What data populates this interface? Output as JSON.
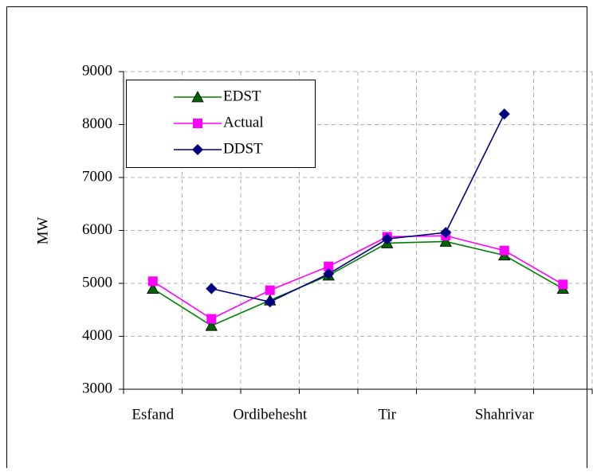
{
  "chart_data": {
    "type": "line",
    "y_label": "MW",
    "categories": [
      "Esfand",
      null,
      "Ordibehesht",
      null,
      "Tir",
      null,
      "Shahrivar",
      null
    ],
    "series": [
      {
        "name": "EDST",
        "color": "#008000",
        "marker": "triangle",
        "values": [
          4900,
          4200,
          4680,
          5150,
          5760,
          5790,
          5530,
          4900
        ]
      },
      {
        "name": "Actual",
        "color": "#ff00ff",
        "marker": "square",
        "values": [
          5040,
          4330,
          4870,
          5320,
          5880,
          5900,
          5620,
          4980
        ]
      },
      {
        "name": "DDST",
        "color": "#000080",
        "marker": "diamond",
        "values": [
          null,
          4900,
          4650,
          5180,
          5840,
          5960,
          8200,
          null
        ]
      }
    ],
    "ylim": [
      3000,
      9000
    ],
    "yticks": [
      3000,
      4000,
      5000,
      6000,
      7000,
      8000,
      9000
    ],
    "grid": true,
    "legend": "upper left"
  }
}
